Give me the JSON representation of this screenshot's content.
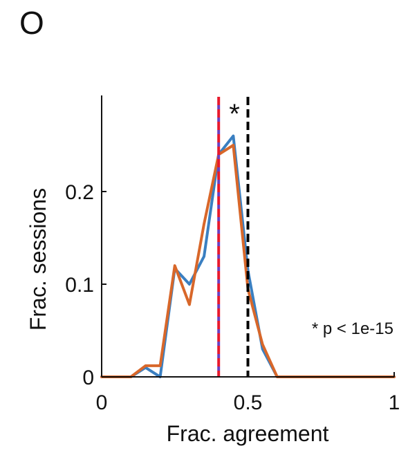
{
  "panel_label": "O",
  "chart_data": {
    "type": "line",
    "title": "",
    "xlabel": "Frac. agreement",
    "ylabel": "Frac. sessions",
    "xlim": [
      0,
      1
    ],
    "ylim": [
      0,
      0.3
    ],
    "xticks": [
      0,
      0.5,
      1
    ],
    "xtick_labels": [
      "0",
      "0.5",
      "1"
    ],
    "yticks": [
      0,
      0.1,
      0.2
    ],
    "ytick_labels": [
      "0",
      "0.1",
      "0.2"
    ],
    "grid": false,
    "legend": null,
    "series": [
      {
        "color": "#3a7fc1",
        "x": [
          0,
          0.05,
          0.1,
          0.15,
          0.2,
          0.25,
          0.3,
          0.35,
          0.4,
          0.45,
          0.5,
          0.55,
          0.6,
          0.65,
          0.7,
          0.75,
          0.8,
          0.85,
          0.9,
          0.95,
          1
        ],
        "y": [
          0,
          0,
          0,
          0.01,
          0,
          0.117,
          0.1,
          0.13,
          0.24,
          0.26,
          0.115,
          0.03,
          0,
          0,
          0,
          0,
          0,
          0,
          0,
          0,
          0
        ]
      },
      {
        "color": "#d8672a",
        "x": [
          0,
          0.05,
          0.1,
          0.15,
          0.2,
          0.25,
          0.3,
          0.35,
          0.4,
          0.45,
          0.5,
          0.55,
          0.6,
          0.65,
          0.7,
          0.75,
          0.8,
          0.85,
          0.9,
          0.95,
          1
        ],
        "y": [
          0,
          0,
          0,
          0.012,
          0.012,
          0.12,
          0.078,
          0.165,
          0.24,
          0.25,
          0.095,
          0.035,
          0,
          0,
          0,
          0,
          0,
          0,
          0,
          0,
          0
        ]
      }
    ],
    "vlines": [
      {
        "x": 0.4,
        "colors": [
          "#e8192c",
          "#6a3fc0"
        ],
        "style": "dashed"
      },
      {
        "x": 0.5,
        "colors": [
          "#000000"
        ],
        "style": "dashed"
      }
    ],
    "annotations": {
      "star": "*",
      "pvalue": "* p < 1e-15"
    }
  }
}
